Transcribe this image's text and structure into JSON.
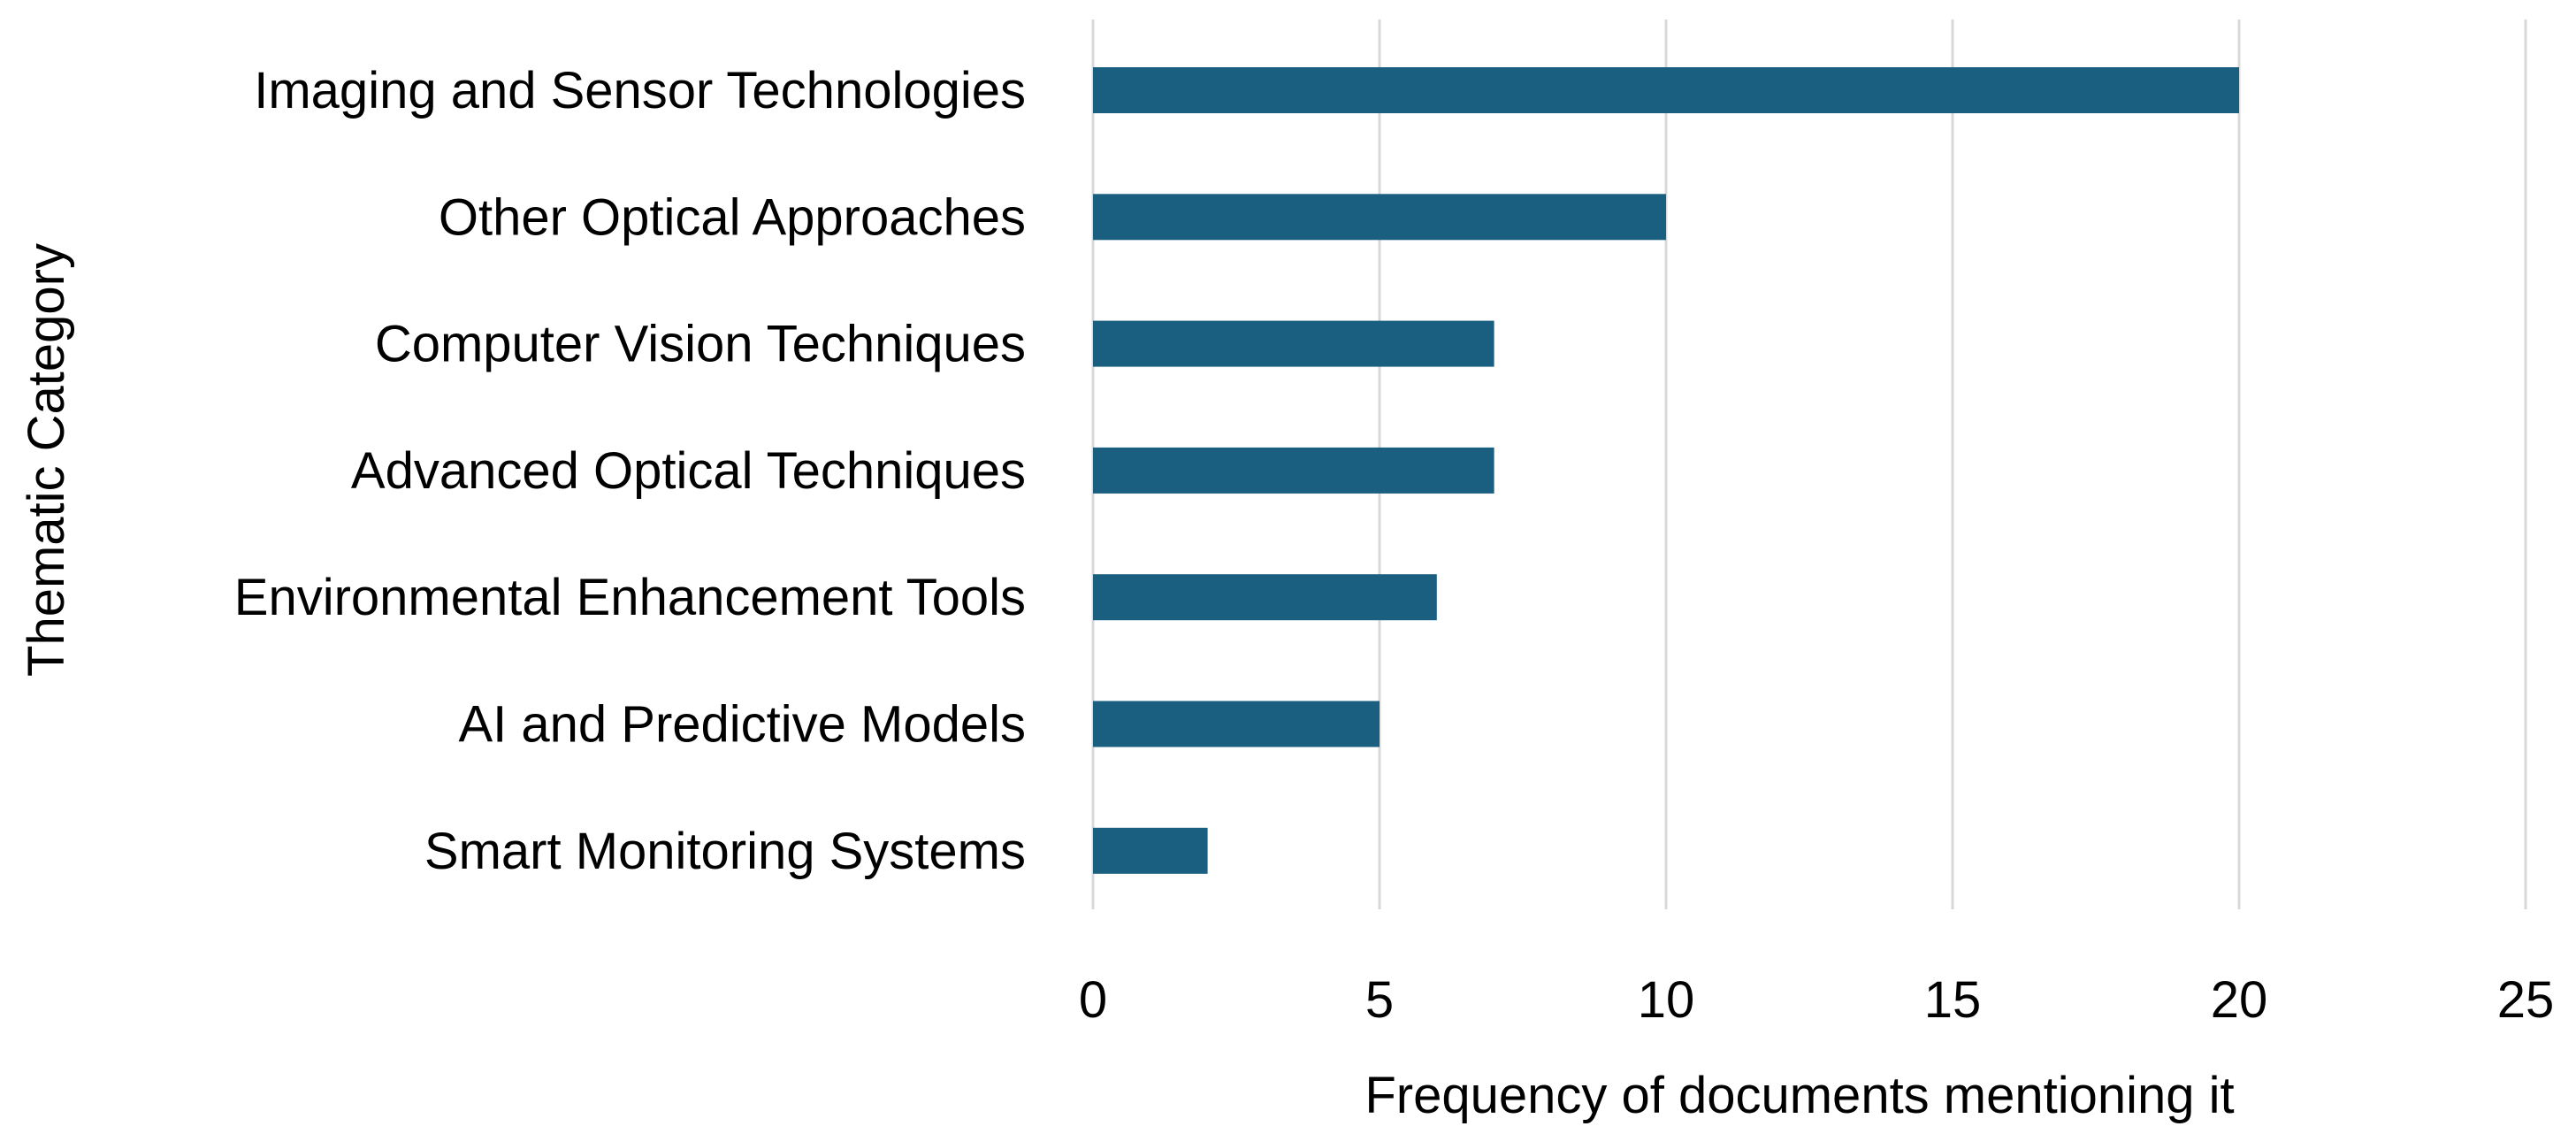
{
  "chart_data": {
    "type": "bar",
    "orientation": "horizontal",
    "title": "",
    "xlabel": "Frequency of documents mentioning it",
    "ylabel": "Thematic Category",
    "categories": [
      "Imaging and Sensor Technologies",
      "Other Optical Approaches",
      "Computer Vision Techniques",
      "Advanced Optical Techniques",
      "Environmental Enhancement Tools",
      "AI and Predictive Models",
      "Smart Monitoring Systems"
    ],
    "values": [
      20,
      10,
      7,
      7,
      6,
      5,
      2
    ],
    "xlim": [
      0,
      25
    ],
    "xticks": [
      0,
      5,
      10,
      15,
      20,
      25
    ],
    "grid": "vertical",
    "legend": "none",
    "bar_color": "#1a5f80",
    "grid_color": "#d9d9d9"
  }
}
